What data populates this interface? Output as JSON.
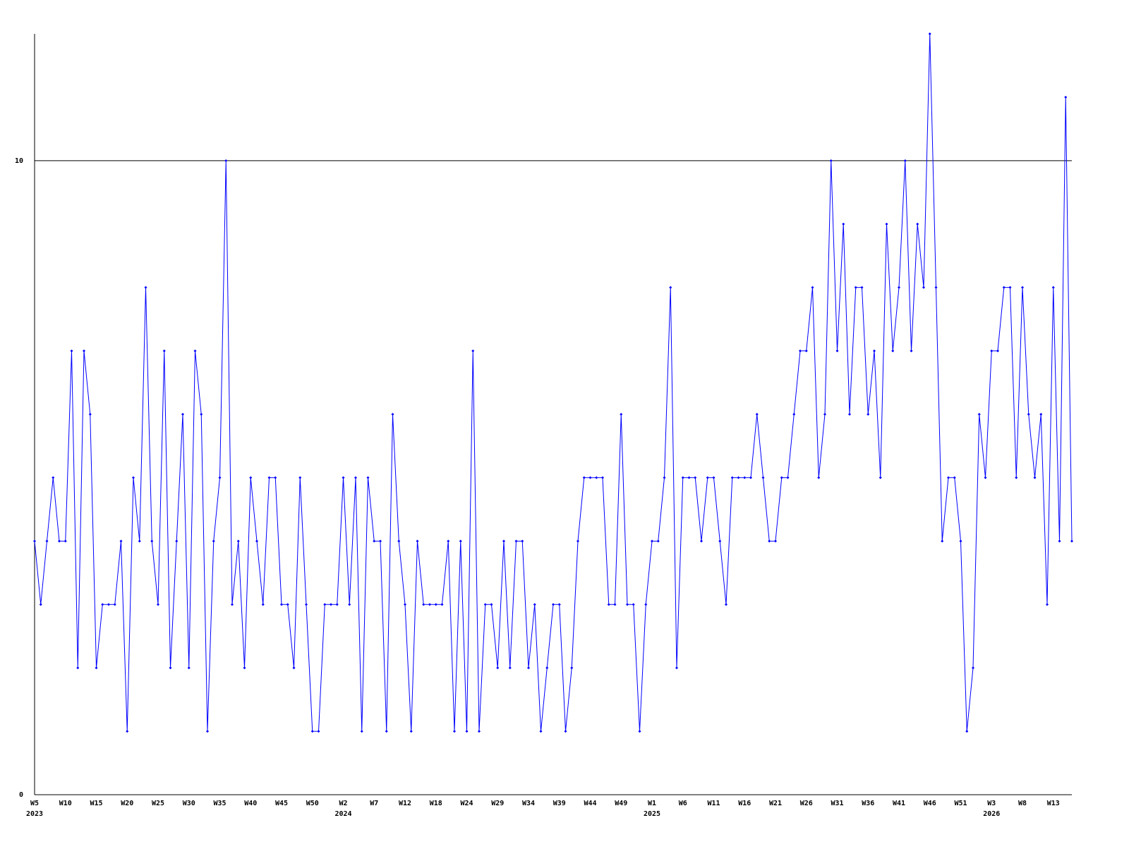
{
  "chart_data": {
    "type": "line",
    "categories": [
      "W5",
      null,
      null,
      null,
      null,
      "W10",
      null,
      null,
      null,
      null,
      "W15",
      null,
      null,
      null,
      null,
      "W20",
      null,
      null,
      null,
      null,
      "W25",
      null,
      null,
      null,
      null,
      "W30",
      null,
      null,
      null,
      null,
      "W35",
      null,
      null,
      null,
      null,
      "W40",
      null,
      null,
      null,
      null,
      "W45",
      null,
      null,
      null,
      null,
      "W50",
      null,
      null,
      null,
      null,
      "W2",
      null,
      null,
      null,
      null,
      "W7",
      null,
      null,
      null,
      null,
      "W12",
      null,
      null,
      null,
      null,
      "W18",
      null,
      null,
      null,
      null,
      "W24",
      null,
      null,
      null,
      null,
      "W29",
      null,
      null,
      null,
      null,
      "W34",
      null,
      null,
      null,
      null,
      "W39",
      null,
      null,
      null,
      null,
      "W44",
      null,
      null,
      null,
      null,
      "W49",
      null,
      null,
      null,
      null,
      "W1",
      null,
      null,
      null,
      null,
      "W6",
      null,
      null,
      null,
      null,
      "W11",
      null,
      null,
      null,
      null,
      "W16",
      null,
      null,
      null,
      null,
      "W21",
      null,
      null,
      null,
      null,
      "W26",
      null,
      null,
      null,
      null,
      "W31",
      null,
      null,
      null,
      null,
      "W36",
      null,
      null,
      null,
      null,
      "W41",
      null,
      null,
      null,
      null,
      "W46",
      null,
      null,
      null,
      null,
      "W51",
      null,
      null,
      null,
      null,
      "W3",
      null,
      null,
      null,
      null,
      "W8",
      null,
      null,
      null,
      null,
      "W13",
      null,
      null,
      null
    ],
    "category_years": [
      "2023",
      null,
      null,
      null,
      null,
      null,
      null,
      null,
      null,
      null,
      null,
      null,
      null,
      null,
      null,
      null,
      null,
      null,
      null,
      null,
      null,
      null,
      null,
      null,
      null,
      null,
      null,
      null,
      null,
      null,
      null,
      null,
      null,
      null,
      null,
      null,
      null,
      null,
      null,
      null,
      null,
      null,
      null,
      null,
      null,
      null,
      null,
      null,
      null,
      null,
      "2024",
      null,
      null,
      null,
      null,
      null,
      null,
      null,
      null,
      null,
      null,
      null,
      null,
      null,
      null,
      null,
      null,
      null,
      null,
      null,
      null,
      null,
      null,
      null,
      null,
      null,
      null,
      null,
      null,
      null,
      null,
      null,
      null,
      null,
      null,
      null,
      null,
      null,
      null,
      null,
      null,
      null,
      null,
      null,
      null,
      null,
      null,
      null,
      null,
      null,
      "2025",
      null,
      null,
      null,
      null,
      null,
      null,
      null,
      null,
      null,
      null,
      null,
      null,
      null,
      null,
      null,
      null,
      null,
      null,
      null,
      null,
      null,
      null,
      null,
      null,
      null,
      null,
      null,
      null,
      null,
      null,
      null,
      null,
      null,
      null,
      null,
      null,
      null,
      null,
      null,
      null,
      null,
      null,
      null,
      null,
      null,
      null,
      null,
      null,
      null,
      null,
      null,
      null,
      null,
      null,
      "2026",
      null,
      null,
      null,
      null,
      null,
      null,
      null,
      null,
      null,
      null,
      null,
      null,
      null
    ],
    "values": [
      4,
      3,
      4,
      5,
      4,
      4,
      7,
      2,
      7,
      6,
      2,
      3,
      3,
      3,
      4,
      1,
      5,
      4,
      8,
      4,
      3,
      7,
      2,
      4,
      6,
      2,
      7,
      6,
      1,
      4,
      5,
      10,
      3,
      4,
      2,
      5,
      4,
      3,
      5,
      5,
      3,
      3,
      2,
      5,
      3,
      1,
      1,
      3,
      3,
      3,
      5,
      3,
      5,
      1,
      5,
      4,
      4,
      1,
      6,
      4,
      3,
      1,
      4,
      3,
      3,
      3,
      3,
      4,
      1,
      4,
      1,
      7,
      1,
      3,
      3,
      2,
      4,
      2,
      4,
      4,
      2,
      3,
      1,
      2,
      3,
      3,
      1,
      2,
      4,
      5,
      5,
      5,
      5,
      3,
      3,
      6,
      3,
      3,
      1,
      3,
      4,
      4,
      5,
      8,
      2,
      5,
      5,
      5,
      4,
      5,
      5,
      4,
      3,
      5,
      5,
      5,
      5,
      6,
      5,
      4,
      4,
      5,
      5,
      6,
      7,
      7,
      8,
      5,
      6,
      10,
      7,
      9,
      6,
      8,
      8,
      6,
      7,
      5,
      9,
      7,
      8,
      10,
      7,
      9,
      8,
      12,
      8,
      4,
      5,
      5,
      4,
      1,
      2,
      6,
      5,
      7,
      7,
      8,
      8,
      5,
      8,
      6,
      5,
      6,
      3,
      8,
      4,
      11,
      4
    ],
    "color": "#0000ff",
    "ylim": [
      0,
      12
    ],
    "yticks": [
      0,
      10
    ],
    "grid": true
  }
}
